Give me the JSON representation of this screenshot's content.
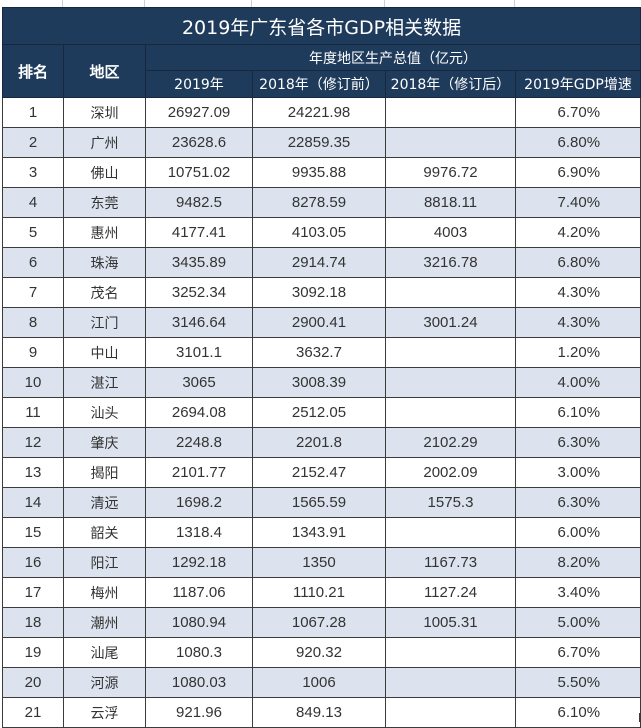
{
  "table": {
    "title": "2019年广东省各市GDP相关数据",
    "headers": {
      "rank": "排名",
      "region": "地区",
      "group": "年度地区生产总值（亿元）",
      "col_2019": "2019年",
      "col_2018_before": "2018年（修订前）",
      "col_2018_after": "2018年（修订后）",
      "col_growth": "2019年GDP增速"
    },
    "colors": {
      "header_bg": "#1f3b5c",
      "header_text": "#ffffff",
      "alt_row_bg": "#dce3ee",
      "row_bg": "#ffffff"
    },
    "rows": [
      {
        "rank": "1",
        "city": "深圳",
        "gdp2019": "26927.09",
        "gdp2018_before": "24221.98",
        "gdp2018_after": "",
        "growth": "6.70%"
      },
      {
        "rank": "2",
        "city": "广州",
        "gdp2019": "23628.6",
        "gdp2018_before": "22859.35",
        "gdp2018_after": "",
        "growth": "6.80%"
      },
      {
        "rank": "3",
        "city": "佛山",
        "gdp2019": "10751.02",
        "gdp2018_before": "9935.88",
        "gdp2018_after": "9976.72",
        "growth": "6.90%"
      },
      {
        "rank": "4",
        "city": "东莞",
        "gdp2019": "9482.5",
        "gdp2018_before": "8278.59",
        "gdp2018_after": "8818.11",
        "growth": "7.40%"
      },
      {
        "rank": "5",
        "city": "惠州",
        "gdp2019": "4177.41",
        "gdp2018_before": "4103.05",
        "gdp2018_after": "4003",
        "growth": "4.20%"
      },
      {
        "rank": "6",
        "city": "珠海",
        "gdp2019": "3435.89",
        "gdp2018_before": "2914.74",
        "gdp2018_after": "3216.78",
        "growth": "6.80%"
      },
      {
        "rank": "7",
        "city": "茂名",
        "gdp2019": "3252.34",
        "gdp2018_before": "3092.18",
        "gdp2018_after": "",
        "growth": "4.30%"
      },
      {
        "rank": "8",
        "city": "江门",
        "gdp2019": "3146.64",
        "gdp2018_before": "2900.41",
        "gdp2018_after": "3001.24",
        "growth": "4.30%"
      },
      {
        "rank": "9",
        "city": "中山",
        "gdp2019": "3101.1",
        "gdp2018_before": "3632.7",
        "gdp2018_after": "",
        "growth": "1.20%"
      },
      {
        "rank": "10",
        "city": "湛江",
        "gdp2019": "3065",
        "gdp2018_before": "3008.39",
        "gdp2018_after": "",
        "growth": "4.00%"
      },
      {
        "rank": "11",
        "city": "汕头",
        "gdp2019": "2694.08",
        "gdp2018_before": "2512.05",
        "gdp2018_after": "",
        "growth": "6.10%"
      },
      {
        "rank": "12",
        "city": "肇庆",
        "gdp2019": "2248.8",
        "gdp2018_before": "2201.8",
        "gdp2018_after": "2102.29",
        "growth": "6.30%"
      },
      {
        "rank": "13",
        "city": "揭阳",
        "gdp2019": "2101.77",
        "gdp2018_before": "2152.47",
        "gdp2018_after": "2002.09",
        "growth": "3.00%"
      },
      {
        "rank": "14",
        "city": "清远",
        "gdp2019": "1698.2",
        "gdp2018_before": "1565.59",
        "gdp2018_after": "1575.3",
        "growth": "6.30%"
      },
      {
        "rank": "15",
        "city": "韶关",
        "gdp2019": "1318.4",
        "gdp2018_before": "1343.91",
        "gdp2018_after": "",
        "growth": "6.00%"
      },
      {
        "rank": "16",
        "city": "阳江",
        "gdp2019": "1292.18",
        "gdp2018_before": "1350",
        "gdp2018_after": "1167.73",
        "growth": "8.20%"
      },
      {
        "rank": "17",
        "city": "梅州",
        "gdp2019": "1187.06",
        "gdp2018_before": "1110.21",
        "gdp2018_after": "1127.24",
        "growth": "3.40%"
      },
      {
        "rank": "18",
        "city": "潮州",
        "gdp2019": "1080.94",
        "gdp2018_before": "1067.28",
        "gdp2018_after": "1005.31",
        "growth": "5.00%"
      },
      {
        "rank": "19",
        "city": "汕尾",
        "gdp2019": "1080.3",
        "gdp2018_before": "920.32",
        "gdp2018_after": "",
        "growth": "6.70%"
      },
      {
        "rank": "20",
        "city": "河源",
        "gdp2019": "1080.03",
        "gdp2018_before": "1006",
        "gdp2018_after": "",
        "growth": "5.50%"
      },
      {
        "rank": "21",
        "city": "云浮",
        "gdp2019": "921.96",
        "gdp2018_before": "849.13",
        "gdp2018_after": "",
        "growth": "6.10%"
      }
    ]
  }
}
